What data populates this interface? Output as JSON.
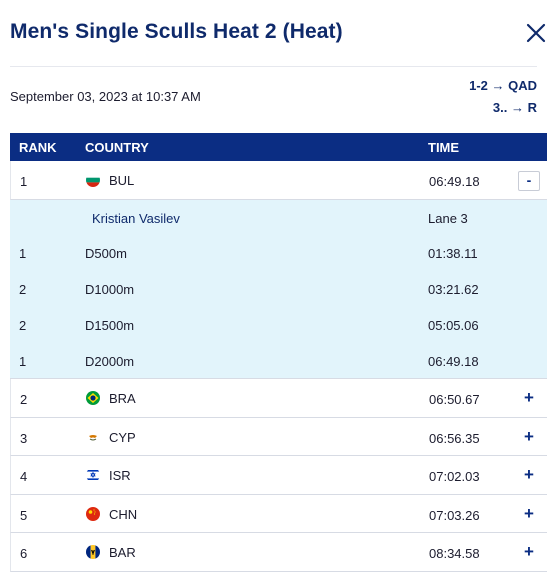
{
  "header": {
    "title": "Men's Single Sculls Heat 2 (Heat)",
    "date": "September 03, 2023 at 10:37 AM",
    "qualification": [
      "1-2 → QAD",
      "3.. → R"
    ]
  },
  "table": {
    "columns": {
      "rank": "RANK",
      "country": "COUNTRY",
      "time": "TIME"
    },
    "rows": [
      {
        "rank": "1",
        "country": "BUL",
        "time": "06:49.18",
        "toggle": "-",
        "expanded": true,
        "athlete": "Kristian Vasilev",
        "lane": "Lane 3",
        "splits": [
          {
            "rank": "1",
            "label": "D500m",
            "time": "01:38.11"
          },
          {
            "rank": "2",
            "label": "D1000m",
            "time": "03:21.62"
          },
          {
            "rank": "2",
            "label": "D1500m",
            "time": "05:05.06"
          },
          {
            "rank": "1",
            "label": "D2000m",
            "time": "06:49.18"
          }
        ]
      },
      {
        "rank": "2",
        "country": "BRA",
        "time": "06:50.67",
        "toggle": "+"
      },
      {
        "rank": "3",
        "country": "CYP",
        "time": "06:56.35",
        "toggle": "+"
      },
      {
        "rank": "4",
        "country": "ISR",
        "time": "07:02.03",
        "toggle": "+"
      },
      {
        "rank": "5",
        "country": "CHN",
        "time": "07:03.26",
        "toggle": "+"
      },
      {
        "rank": "6",
        "country": "BAR",
        "time": "08:34.58",
        "toggle": "+"
      }
    ]
  },
  "colors": {
    "brand": "#0b2d83",
    "expanded_bg": "#e2f4fb",
    "title": "#0f2a6b"
  },
  "icons": {
    "close": "close-icon",
    "flags": [
      "bul-flag-icon",
      "bra-flag-icon",
      "cyp-flag-icon",
      "isr-flag-icon",
      "chn-flag-icon",
      "bar-flag-icon"
    ]
  }
}
